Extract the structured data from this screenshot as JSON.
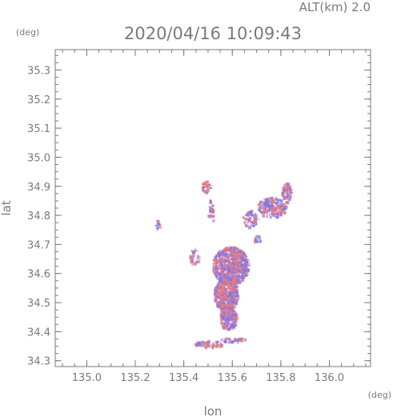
{
  "chart_data": {
    "type": "heatmap",
    "title": "2020/04/16 10:09:43",
    "subtitle": "ALT(km) 2.0",
    "xlabel": "lon",
    "ylabel": "lat",
    "xunit": "(deg)",
    "yunit": "(deg)",
    "xlim": [
      134.87,
      136.17
    ],
    "ylim": [
      34.28,
      35.37
    ],
    "xticks": [
      "135.0",
      "135.2",
      "135.4",
      "135.6",
      "135.8",
      "136.0"
    ],
    "yticks": [
      "34.3",
      "34.4",
      "34.5",
      "34.6",
      "34.7",
      "34.8",
      "34.9",
      "35.0",
      "35.1",
      "35.2",
      "35.3"
    ],
    "grid": false,
    "colors": {
      "positive": "#f07878",
      "negative": "#7878f0",
      "axis": "#7a7a7a"
    },
    "clusters": [
      {
        "lon": 135.59,
        "lat": 34.63,
        "rlon": 0.075,
        "rlat": 0.065,
        "n": 750
      },
      {
        "lon": 135.57,
        "lat": 34.53,
        "rlon": 0.05,
        "rlat": 0.055,
        "n": 420
      },
      {
        "lon": 135.58,
        "lat": 34.45,
        "rlon": 0.035,
        "rlat": 0.04,
        "n": 220
      },
      {
        "lon": 135.76,
        "lat": 34.83,
        "rlon": 0.06,
        "rlat": 0.035,
        "n": 200
      },
      {
        "lon": 135.82,
        "lat": 34.88,
        "rlon": 0.02,
        "rlat": 0.035,
        "n": 90
      },
      {
        "lon": 135.49,
        "lat": 34.9,
        "rlon": 0.02,
        "rlat": 0.02,
        "n": 40
      },
      {
        "lon": 135.51,
        "lat": 34.82,
        "rlon": 0.015,
        "rlat": 0.04,
        "n": 30
      },
      {
        "lon": 135.67,
        "lat": 34.79,
        "rlon": 0.03,
        "rlat": 0.03,
        "n": 70
      },
      {
        "lon": 135.29,
        "lat": 34.77,
        "rlon": 0.01,
        "rlat": 0.015,
        "n": 14
      },
      {
        "lon": 135.5,
        "lat": 34.36,
        "rlon": 0.06,
        "rlat": 0.012,
        "n": 80
      },
      {
        "lon": 135.6,
        "lat": 34.375,
        "rlon": 0.05,
        "rlat": 0.008,
        "n": 40
      },
      {
        "lon": 135.44,
        "lat": 34.66,
        "rlon": 0.02,
        "rlat": 0.03,
        "n": 40
      },
      {
        "lon": 135.7,
        "lat": 34.72,
        "rlon": 0.015,
        "rlat": 0.015,
        "n": 20
      }
    ]
  }
}
